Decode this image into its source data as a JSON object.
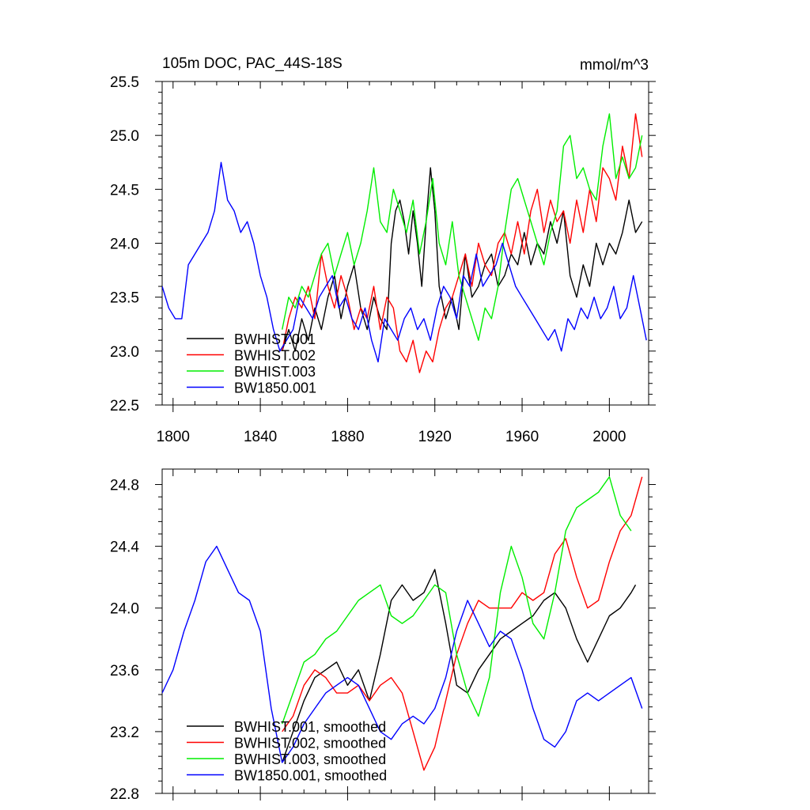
{
  "chart_data": [
    {
      "type": "line",
      "title_left": "105m DOC, PAC_44S-18S",
      "title_right": "mmol/m^3",
      "xlim": [
        1795,
        2018
      ],
      "ylim": [
        22.5,
        25.5
      ],
      "x_ticks": [
        1800,
        1840,
        1880,
        1920,
        1960,
        2000
      ],
      "x_tick_labels": [
        "1800",
        "1840",
        "1880",
        "1920",
        "1960",
        "2000"
      ],
      "y_ticks": [
        22.5,
        23.0,
        23.5,
        24.0,
        24.5,
        25.0,
        25.5
      ],
      "y_tick_labels": [
        "22.5",
        "23.0",
        "23.5",
        "24.0",
        "24.5",
        "25.0",
        "25.5"
      ],
      "legend_position": "bottom-left",
      "series": [
        {
          "name": "BWHIST.001",
          "color": "#000000",
          "x": [
            1850,
            1853,
            1856,
            1859,
            1862,
            1865,
            1868,
            1871,
            1874,
            1877,
            1880,
            1883,
            1886,
            1889,
            1892,
            1895,
            1898,
            1900,
            1902,
            1904,
            1906,
            1908,
            1910,
            1912,
            1914,
            1916,
            1918,
            1920,
            1922,
            1925,
            1928,
            1931,
            1934,
            1937,
            1940,
            1943,
            1946,
            1949,
            1952,
            1955,
            1958,
            1961,
            1964,
            1967,
            1970,
            1973,
            1976,
            1979,
            1982,
            1985,
            1988,
            1991,
            1994,
            1997,
            2000,
            2003,
            2006,
            2009,
            2012,
            2015
          ],
          "values": [
            23.0,
            23.2,
            23.0,
            23.3,
            23.1,
            23.4,
            23.2,
            23.5,
            23.7,
            23.3,
            23.6,
            23.8,
            23.4,
            23.2,
            23.5,
            23.3,
            23.2,
            24.0,
            24.3,
            24.4,
            24.2,
            23.9,
            24.3,
            24.0,
            23.6,
            24.2,
            24.7,
            24.3,
            23.6,
            23.3,
            23.5,
            23.2,
            23.9,
            23.5,
            23.6,
            23.8,
            23.9,
            23.6,
            23.7,
            23.9,
            23.8,
            24.1,
            23.8,
            24.0,
            23.9,
            24.2,
            24.0,
            24.3,
            23.7,
            23.5,
            23.8,
            23.6,
            24.0,
            23.8,
            24.0,
            23.9,
            24.1,
            24.4,
            24.1,
            24.2
          ]
        },
        {
          "name": "BWHIST.002",
          "color": "#ff0000",
          "x": [
            1850,
            1853,
            1856,
            1859,
            1862,
            1865,
            1868,
            1871,
            1874,
            1877,
            1880,
            1883,
            1886,
            1889,
            1892,
            1895,
            1898,
            1901,
            1904,
            1907,
            1910,
            1913,
            1916,
            1919,
            1922,
            1925,
            1928,
            1931,
            1934,
            1937,
            1940,
            1943,
            1946,
            1949,
            1952,
            1955,
            1958,
            1961,
            1964,
            1967,
            1970,
            1973,
            1976,
            1979,
            1982,
            1985,
            1988,
            1991,
            1994,
            1997,
            2000,
            2003,
            2006,
            2009,
            2012,
            2015
          ],
          "values": [
            23.0,
            23.3,
            23.5,
            23.4,
            23.6,
            23.3,
            23.9,
            23.6,
            23.4,
            23.7,
            23.5,
            23.2,
            23.4,
            23.3,
            23.6,
            23.2,
            23.5,
            23.4,
            23.0,
            22.9,
            23.1,
            22.8,
            23.0,
            22.9,
            23.2,
            23.4,
            23.5,
            23.7,
            23.9,
            23.6,
            24.0,
            23.8,
            23.7,
            24.0,
            24.1,
            23.9,
            24.2,
            23.9,
            24.3,
            24.5,
            24.1,
            24.4,
            24.2,
            24.3,
            24.0,
            24.4,
            24.1,
            24.5,
            24.2,
            24.7,
            24.6,
            24.4,
            24.9,
            24.6,
            25.2,
            24.8
          ]
        },
        {
          "name": "BWHIST.003",
          "color": "#00ee00",
          "x": [
            1850,
            1853,
            1856,
            1859,
            1862,
            1865,
            1868,
            1871,
            1874,
            1877,
            1880,
            1883,
            1886,
            1889,
            1892,
            1895,
            1898,
            1901,
            1904,
            1907,
            1910,
            1913,
            1916,
            1919,
            1922,
            1925,
            1928,
            1931,
            1934,
            1937,
            1940,
            1943,
            1946,
            1949,
            1952,
            1955,
            1958,
            1961,
            1964,
            1967,
            1970,
            1973,
            1976,
            1979,
            1982,
            1985,
            1988,
            1991,
            1994,
            1997,
            2000,
            2003,
            2006,
            2009,
            2012,
            2015
          ],
          "values": [
            23.2,
            23.5,
            23.4,
            23.6,
            23.5,
            23.7,
            23.9,
            24.0,
            23.7,
            23.9,
            24.1,
            23.8,
            24.0,
            24.3,
            24.7,
            24.2,
            24.1,
            24.5,
            24.3,
            24.1,
            24.4,
            23.9,
            24.2,
            24.6,
            24.0,
            23.8,
            24.2,
            23.7,
            23.5,
            23.3,
            23.1,
            23.4,
            23.3,
            23.6,
            24.1,
            24.5,
            24.6,
            24.4,
            24.2,
            24.0,
            23.8,
            24.1,
            24.3,
            24.9,
            25.0,
            24.6,
            24.7,
            24.5,
            24.4,
            24.9,
            25.2,
            24.6,
            24.8,
            24.6,
            24.7,
            25.0
          ]
        },
        {
          "name": "BW1850.001",
          "color": "#0000ff",
          "x": [
            1795,
            1798,
            1801,
            1804,
            1807,
            1810,
            1813,
            1816,
            1819,
            1822,
            1825,
            1828,
            1831,
            1834,
            1837,
            1840,
            1843,
            1846,
            1849,
            1852,
            1855,
            1858,
            1861,
            1864,
            1867,
            1870,
            1873,
            1876,
            1879,
            1882,
            1885,
            1888,
            1891,
            1894,
            1897,
            1900,
            1903,
            1906,
            1909,
            1912,
            1915,
            1918,
            1921,
            1924,
            1927,
            1930,
            1933,
            1936,
            1939,
            1942,
            1945,
            1948,
            1951,
            1954,
            1957,
            1960,
            1963,
            1966,
            1969,
            1972,
            1975,
            1978,
            1981,
            1984,
            1987,
            1990,
            1993,
            1996,
            1999,
            2002,
            2005,
            2008,
            2011,
            2014,
            2017
          ],
          "values": [
            23.6,
            23.4,
            23.3,
            23.3,
            23.8,
            23.9,
            24.0,
            24.1,
            24.3,
            24.75,
            24.4,
            24.3,
            24.1,
            24.2,
            24.0,
            23.7,
            23.5,
            23.2,
            23.0,
            23.1,
            23.2,
            23.5,
            23.4,
            23.3,
            23.5,
            23.6,
            23.7,
            23.4,
            23.5,
            23.3,
            23.2,
            23.4,
            23.1,
            22.9,
            23.3,
            23.2,
            23.1,
            23.3,
            23.4,
            23.2,
            23.3,
            23.1,
            23.4,
            23.6,
            23.5,
            23.3,
            23.7,
            23.6,
            23.9,
            23.6,
            23.7,
            23.8,
            24.0,
            23.8,
            23.6,
            23.5,
            23.4,
            23.3,
            23.2,
            23.1,
            23.2,
            23.0,
            23.3,
            23.2,
            23.4,
            23.3,
            23.5,
            23.3,
            23.4,
            23.6,
            23.3,
            23.4,
            23.7,
            23.4,
            23.1
          ]
        }
      ]
    },
    {
      "type": "line",
      "xlim": [
        1795,
        2018
      ],
      "ylim": [
        22.8,
        24.9
      ],
      "x_ticks": [
        1800,
        1840,
        1880,
        1920,
        1960,
        2000
      ],
      "y_ticks": [
        22.8,
        23.2,
        23.6,
        24.0,
        24.4,
        24.8
      ],
      "y_tick_labels": [
        "22.8",
        "23.2",
        "23.6",
        "24.0",
        "24.4",
        "24.8"
      ],
      "legend_position": "bottom-left",
      "series": [
        {
          "name": "BWHIST.001, smoothed",
          "color": "#000000",
          "x": [
            1850,
            1855,
            1860,
            1865,
            1870,
            1875,
            1880,
            1885,
            1890,
            1895,
            1900,
            1905,
            1910,
            1915,
            1920,
            1925,
            1930,
            1935,
            1940,
            1945,
            1950,
            1955,
            1960,
            1965,
            1970,
            1975,
            1980,
            1985,
            1990,
            1995,
            2000,
            2005,
            2010,
            2012
          ],
          "values": [
            23.0,
            23.2,
            23.4,
            23.55,
            23.6,
            23.65,
            23.5,
            23.6,
            23.4,
            23.7,
            24.05,
            24.15,
            24.05,
            24.1,
            24.25,
            23.9,
            23.5,
            23.45,
            23.6,
            23.7,
            23.8,
            23.85,
            23.9,
            23.95,
            24.05,
            24.1,
            24.0,
            23.8,
            23.65,
            23.8,
            23.95,
            24.0,
            24.1,
            24.15
          ]
        },
        {
          "name": "BWHIST.002, smoothed",
          "color": "#ff0000",
          "x": [
            1850,
            1855,
            1860,
            1865,
            1870,
            1875,
            1880,
            1885,
            1890,
            1895,
            1900,
            1905,
            1910,
            1915,
            1920,
            1925,
            1930,
            1935,
            1940,
            1945,
            1950,
            1955,
            1960,
            1965,
            1970,
            1975,
            1980,
            1985,
            1990,
            1995,
            2000,
            2005,
            2010,
            2015
          ],
          "values": [
            23.2,
            23.3,
            23.5,
            23.6,
            23.55,
            23.45,
            23.45,
            23.5,
            23.4,
            23.5,
            23.55,
            23.45,
            23.2,
            22.95,
            23.1,
            23.4,
            23.7,
            23.9,
            24.05,
            24.0,
            24.0,
            24.0,
            24.1,
            24.05,
            24.1,
            24.35,
            24.45,
            24.2,
            24.0,
            24.05,
            24.3,
            24.5,
            24.6,
            24.85
          ]
        },
        {
          "name": "BWHIST.003, smoothed",
          "color": "#00ee00",
          "x": [
            1850,
            1855,
            1860,
            1865,
            1870,
            1875,
            1880,
            1885,
            1890,
            1895,
            1900,
            1905,
            1910,
            1915,
            1920,
            1925,
            1930,
            1935,
            1940,
            1945,
            1950,
            1955,
            1960,
            1965,
            1970,
            1975,
            1980,
            1985,
            1990,
            1995,
            2000,
            2005,
            2010
          ],
          "values": [
            23.25,
            23.45,
            23.65,
            23.7,
            23.8,
            23.85,
            23.95,
            24.05,
            24.1,
            24.15,
            23.95,
            23.9,
            23.95,
            24.05,
            24.15,
            24.1,
            23.7,
            23.45,
            23.3,
            23.55,
            24.1,
            24.4,
            24.2,
            23.9,
            23.8,
            24.1,
            24.5,
            24.65,
            24.7,
            24.75,
            24.85,
            24.6,
            24.5
          ]
        },
        {
          "name": "BW1850.001, smoothed",
          "color": "#0000ff",
          "x": [
            1795,
            1800,
            1805,
            1810,
            1815,
            1820,
            1825,
            1830,
            1835,
            1840,
            1845,
            1850,
            1855,
            1860,
            1865,
            1870,
            1875,
            1880,
            1885,
            1890,
            1895,
            1900,
            1905,
            1910,
            1915,
            1920,
            1925,
            1930,
            1935,
            1940,
            1945,
            1950,
            1955,
            1960,
            1965,
            1970,
            1975,
            1980,
            1985,
            1990,
            1995,
            2000,
            2005,
            2010,
            2015
          ],
          "values": [
            23.45,
            23.6,
            23.85,
            24.05,
            24.3,
            24.4,
            24.25,
            24.1,
            24.05,
            23.85,
            23.35,
            23.0,
            23.1,
            23.25,
            23.35,
            23.45,
            23.5,
            23.55,
            23.5,
            23.35,
            23.2,
            23.15,
            23.25,
            23.3,
            23.25,
            23.35,
            23.55,
            23.85,
            24.05,
            23.9,
            23.75,
            23.85,
            23.8,
            23.6,
            23.35,
            23.15,
            23.1,
            23.2,
            23.4,
            23.45,
            23.4,
            23.45,
            23.5,
            23.55,
            23.35
          ]
        }
      ]
    }
  ]
}
